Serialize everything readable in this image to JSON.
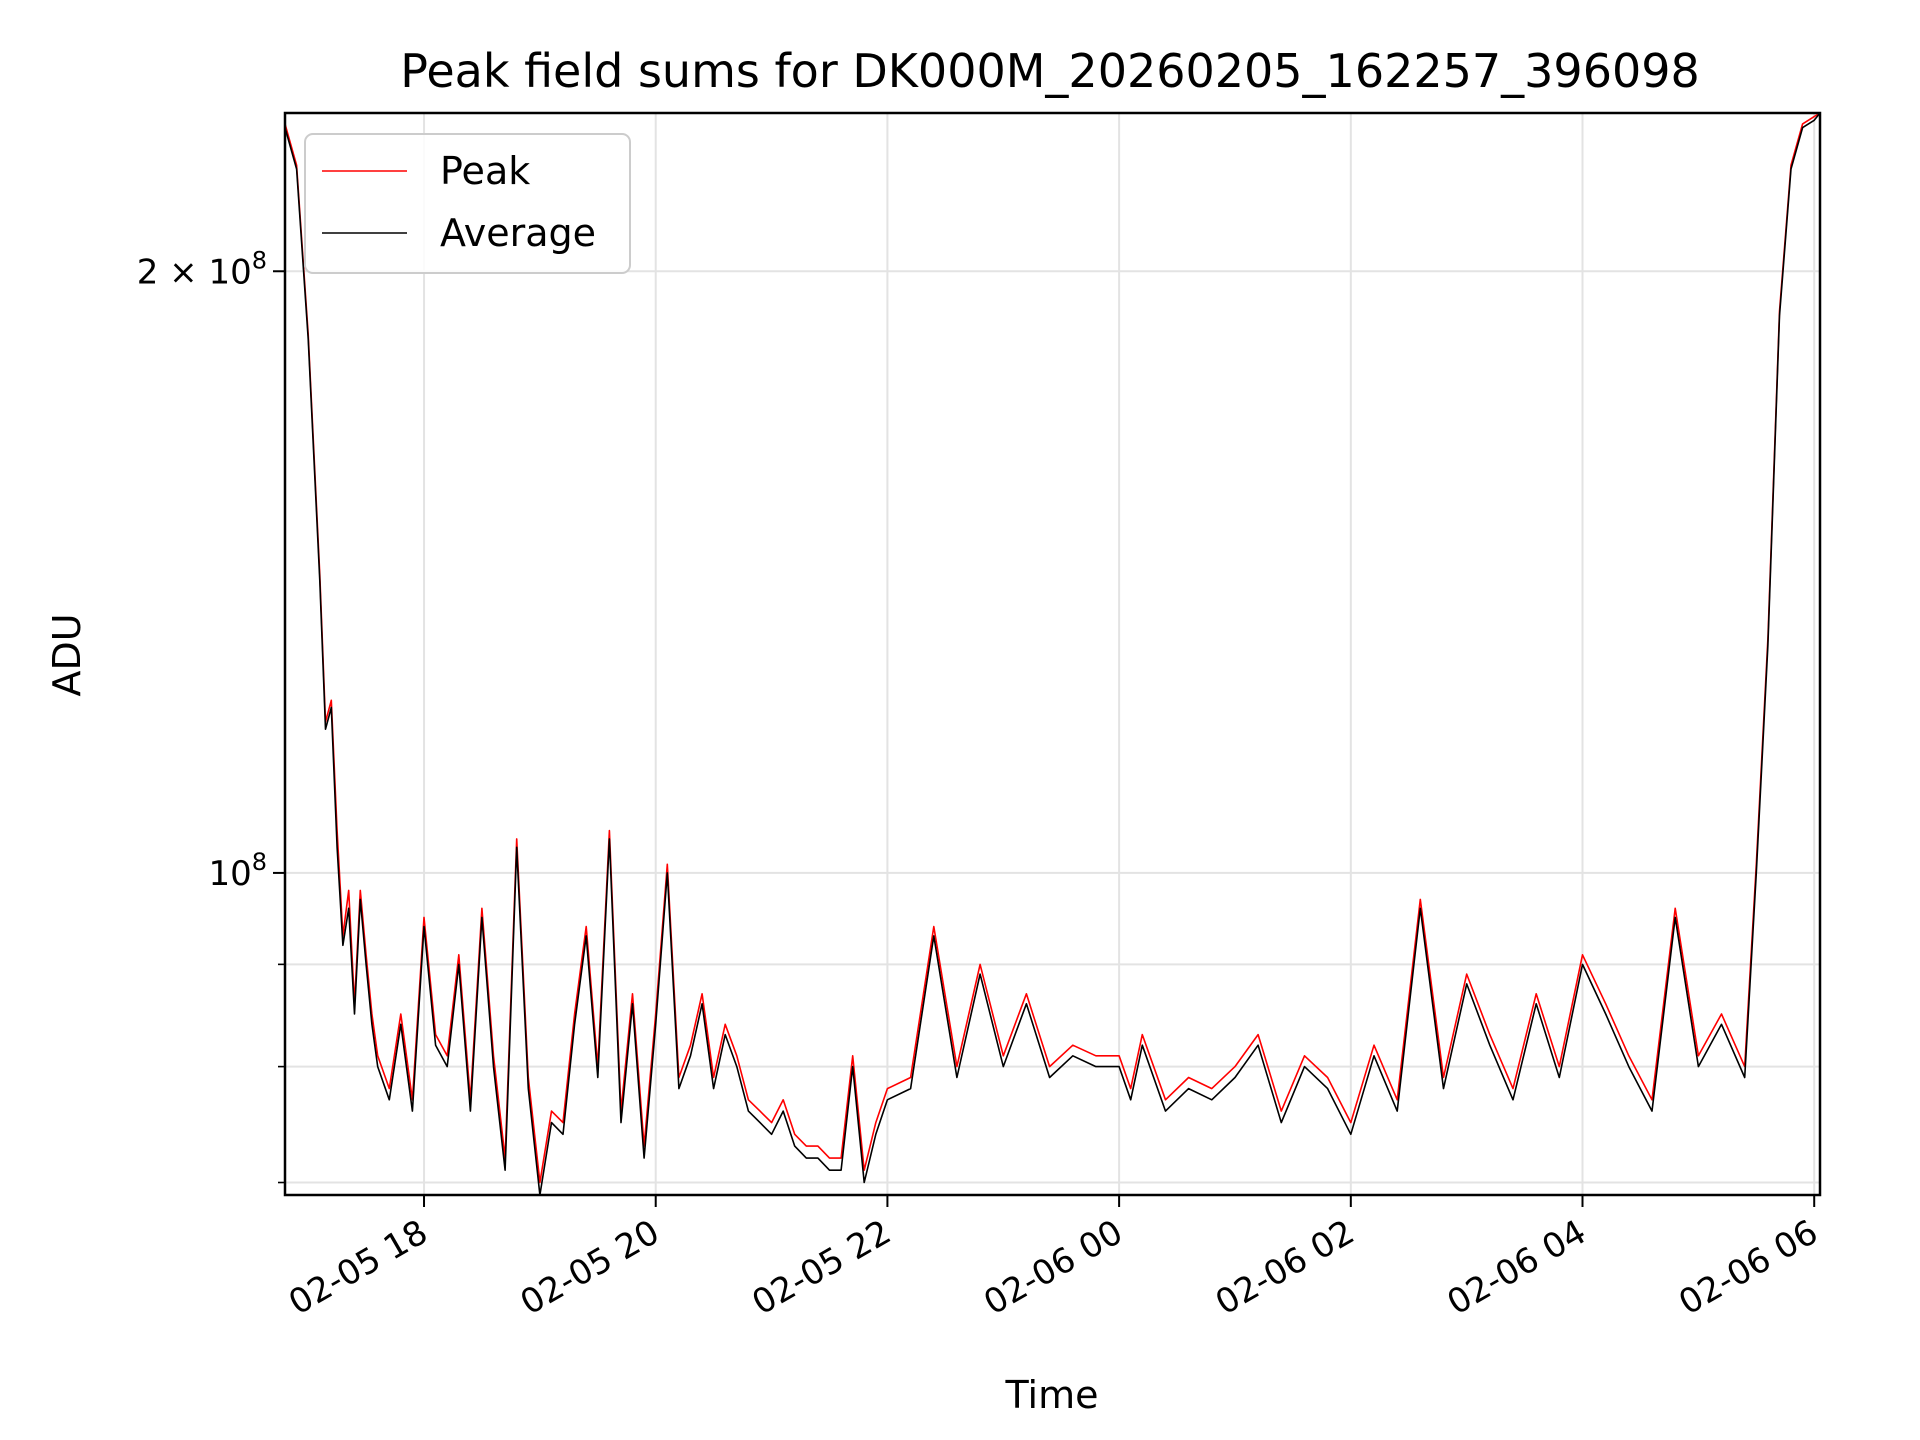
{
  "colors": {
    "peak": "#ff0000",
    "average": "#000000",
    "grid": "#e3e3e3",
    "axes": "#000000",
    "background": "#ffffff"
  },
  "chart_data": {
    "type": "line",
    "title": "Peak field sums for DK000M_20260205_162257_396098",
    "xlabel": "Time",
    "ylabel": "ADU",
    "yscale": "log",
    "ylim": [
      69000000,
      240000000
    ],
    "xlim_hours": [
      16.8,
      30.05
    ],
    "x_unit": "hours since 02-05 00:00",
    "grid": true,
    "legend": {
      "position": "top-left",
      "entries": [
        "Peak",
        "Average"
      ]
    },
    "x_ticks": [
      {
        "hour": 18,
        "label": "02-05 18"
      },
      {
        "hour": 20,
        "label": "02-05 20"
      },
      {
        "hour": 22,
        "label": "02-05 22"
      },
      {
        "hour": 24,
        "label": "02-06 00"
      },
      {
        "hour": 26,
        "label": "02-06 02"
      },
      {
        "hour": 28,
        "label": "02-06 04"
      },
      {
        "hour": 30,
        "label": "02-06 06"
      }
    ],
    "y_major_ticks": [
      {
        "value": 100000000,
        "base": "10",
        "exp": "8",
        "coef": ""
      },
      {
        "value": 200000000,
        "base": "10",
        "exp": "8",
        "coef": "2 × "
      }
    ],
    "y_minor_ticks": [
      70000000,
      80000000,
      90000000
    ],
    "series": [
      {
        "name": "Average",
        "x": [
          16.8,
          16.9,
          17.0,
          17.1,
          17.15,
          17.2,
          17.25,
          17.3,
          17.35,
          17.4,
          17.45,
          17.5,
          17.55,
          17.6,
          17.7,
          17.8,
          17.9,
          18.0,
          18.1,
          18.2,
          18.3,
          18.4,
          18.5,
          18.6,
          18.7,
          18.8,
          18.9,
          19.0,
          19.1,
          19.2,
          19.3,
          19.4,
          19.5,
          19.6,
          19.7,
          19.8,
          19.9,
          20.0,
          20.1,
          20.2,
          20.3,
          20.4,
          20.5,
          20.6,
          20.7,
          20.8,
          20.9,
          21.0,
          21.1,
          21.2,
          21.3,
          21.4,
          21.5,
          21.6,
          21.7,
          21.8,
          21.9,
          22.0,
          22.2,
          22.4,
          22.6,
          22.8,
          23.0,
          23.2,
          23.4,
          23.6,
          23.8,
          24.0,
          24.1,
          24.2,
          24.4,
          24.6,
          24.8,
          25.0,
          25.2,
          25.4,
          25.6,
          25.8,
          26.0,
          26.2,
          26.4,
          26.6,
          26.8,
          27.0,
          27.2,
          27.4,
          27.6,
          27.8,
          28.0,
          28.2,
          28.4,
          28.6,
          28.8,
          29.0,
          29.2,
          29.4,
          29.5,
          29.6,
          29.7,
          29.8,
          29.9,
          30.0,
          30.05
        ],
        "values": [
          236000000,
          225000000,
          185000000,
          140000000,
          118000000,
          121000000,
          103000000,
          92000000,
          96000000,
          85000000,
          97000000,
          90000000,
          84000000,
          80000000,
          77000000,
          84000000,
          76000000,
          94000000,
          82000000,
          80000000,
          90000000,
          76000000,
          95000000,
          80000000,
          71000000,
          103000000,
          78000000,
          69000000,
          75000000,
          74000000,
          84000000,
          93000000,
          79000000,
          104000000,
          75000000,
          86000000,
          72000000,
          84000000,
          100000000,
          78000000,
          81000000,
          86000000,
          78000000,
          83000000,
          80000000,
          76000000,
          75000000,
          74000000,
          76000000,
          73000000,
          72000000,
          72000000,
          71000000,
          71000000,
          80000000,
          70000000,
          74000000,
          77000000,
          78000000,
          93000000,
          79000000,
          89000000,
          80000000,
          86000000,
          79000000,
          81000000,
          80000000,
          80000000,
          77000000,
          82000000,
          76000000,
          78000000,
          77000000,
          79000000,
          82000000,
          75000000,
          80000000,
          78000000,
          74000000,
          81000000,
          76000000,
          96000000,
          78000000,
          88000000,
          82000000,
          77000000,
          86000000,
          79000000,
          90000000,
          85000000,
          80000000,
          76000000,
          95000000,
          80000000,
          84000000,
          79000000,
          100000000,
          130000000,
          190000000,
          225000000,
          236000000,
          238000000,
          240000000
        ]
      },
      {
        "name": "Peak",
        "x": [
          16.8,
          16.9,
          17.0,
          17.1,
          17.15,
          17.2,
          17.25,
          17.3,
          17.35,
          17.4,
          17.45,
          17.5,
          17.55,
          17.6,
          17.7,
          17.8,
          17.9,
          18.0,
          18.1,
          18.2,
          18.3,
          18.4,
          18.5,
          18.6,
          18.7,
          18.8,
          18.9,
          19.0,
          19.1,
          19.2,
          19.3,
          19.4,
          19.5,
          19.6,
          19.7,
          19.8,
          19.9,
          20.0,
          20.1,
          20.2,
          20.3,
          20.4,
          20.5,
          20.6,
          20.7,
          20.8,
          20.9,
          21.0,
          21.1,
          21.2,
          21.3,
          21.4,
          21.5,
          21.6,
          21.7,
          21.8,
          21.9,
          22.0,
          22.2,
          22.4,
          22.6,
          22.8,
          23.0,
          23.2,
          23.4,
          23.6,
          23.8,
          24.0,
          24.1,
          24.2,
          24.4,
          24.6,
          24.8,
          25.0,
          25.2,
          25.4,
          25.6,
          25.8,
          26.0,
          26.2,
          26.4,
          26.6,
          26.8,
          27.0,
          27.2,
          27.4,
          27.6,
          27.8,
          28.0,
          28.2,
          28.4,
          28.6,
          28.8,
          29.0,
          29.2,
          29.4,
          29.5,
          29.6,
          29.7,
          29.8,
          29.9,
          30.0,
          30.05
        ],
        "values": [
          237000000,
          226000000,
          186000000,
          141000000,
          119000000,
          122000000,
          105000000,
          93000000,
          98000000,
          86000000,
          98000000,
          91000000,
          85000000,
          81000000,
          78000000,
          85000000,
          77000000,
          95000000,
          83000000,
          81000000,
          91000000,
          77000000,
          96000000,
          81000000,
          72000000,
          104000000,
          79000000,
          70000000,
          76000000,
          75000000,
          85000000,
          94000000,
          80000000,
          105000000,
          76000000,
          87000000,
          73000000,
          85000000,
          101000000,
          79000000,
          82000000,
          87000000,
          79000000,
          84000000,
          81000000,
          77000000,
          76000000,
          75000000,
          77000000,
          74000000,
          73000000,
          73000000,
          72000000,
          72000000,
          81000000,
          71000000,
          75000000,
          78000000,
          79000000,
          94000000,
          80000000,
          90000000,
          81000000,
          87000000,
          80000000,
          82000000,
          81000000,
          81000000,
          78000000,
          83000000,
          77000000,
          79000000,
          78000000,
          80000000,
          83000000,
          76000000,
          81000000,
          79000000,
          75000000,
          82000000,
          77000000,
          97000000,
          79000000,
          89000000,
          83000000,
          78000000,
          87000000,
          80000000,
          91000000,
          86000000,
          81000000,
          77000000,
          96000000,
          81000000,
          85000000,
          80000000,
          101000000,
          131000000,
          191000000,
          226000000,
          237000000,
          239000000,
          240000000
        ]
      }
    ]
  }
}
